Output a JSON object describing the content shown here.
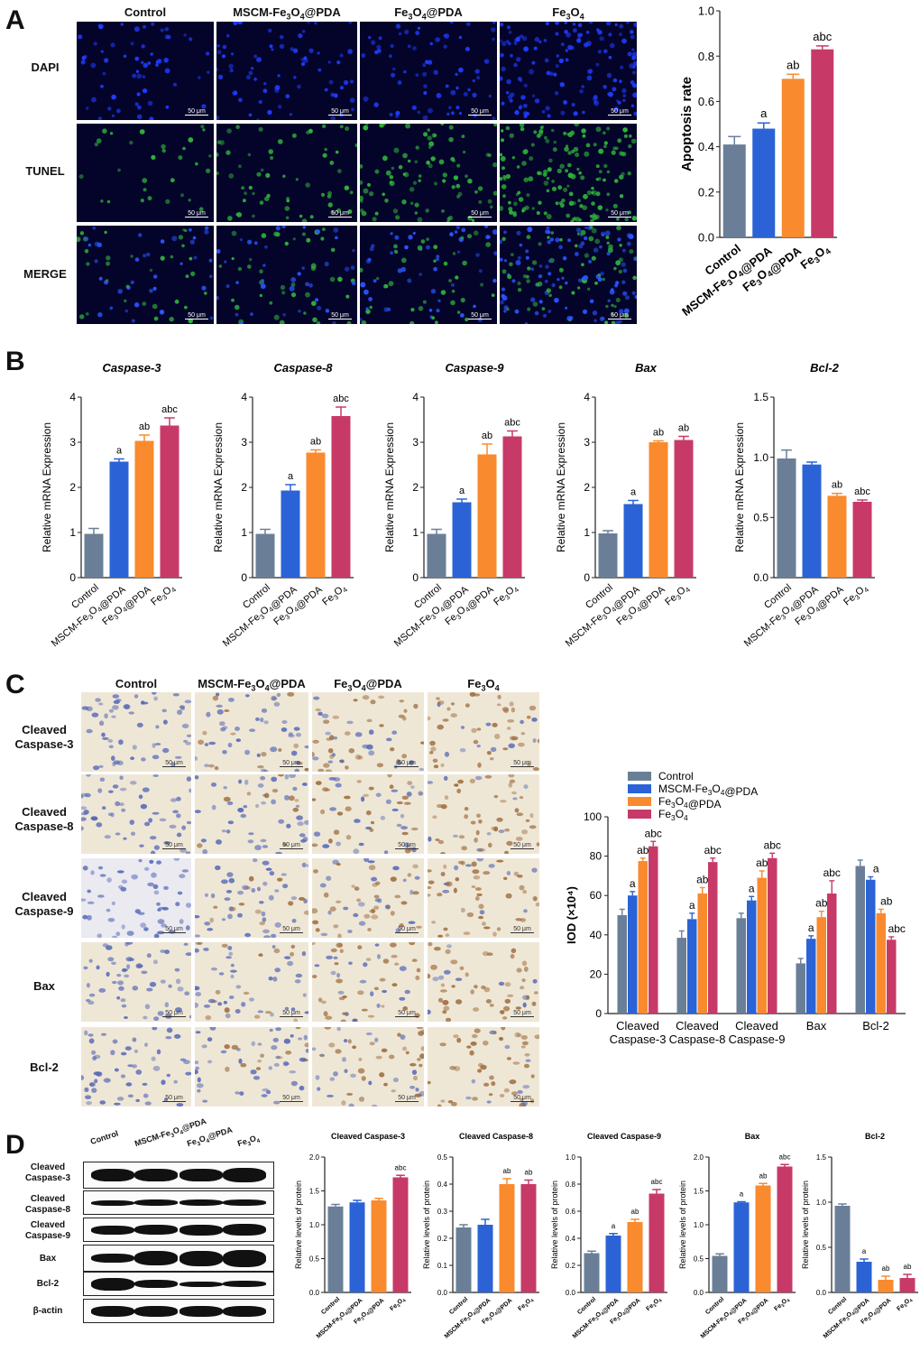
{
  "panels": {
    "a": "A",
    "b": "B",
    "c": "C",
    "d": "D"
  },
  "groups": [
    "Control",
    "MSCM-Fe3O4@PDA",
    "Fe3O4@PDA",
    "Fe3O4"
  ],
  "colors": {
    "control": "#6a7f97",
    "mscm": "#2b63d6",
    "fe3o4pda": "#f98a2e",
    "fe3o4": "#c73a67"
  },
  "panelA": {
    "columns": [
      "Control",
      "MSCM-Fe3O4@PDA",
      "Fe3O4@PDA",
      "Fe3O4"
    ],
    "rows": [
      "DAPI",
      "TUNEL",
      "MERGE"
    ],
    "scale_bar": "50 μm"
  },
  "panelC": {
    "columns": [
      "Control",
      "MSCM-Fe3O4@PDA",
      "Fe3O4@PDA",
      "Fe3O4"
    ],
    "rows": [
      "Cleaved Caspase-3",
      "Cleaved Caspase-8",
      "Cleaved Caspase-9",
      "Bax",
      "Bcl-2"
    ],
    "scale_bar": "50 μm"
  },
  "panelD": {
    "lanes": [
      "Control",
      "MSCM-Fe3O4@PDA",
      "Fe3O4@PDA",
      "Fe3O4"
    ],
    "rows": [
      "Cleaved Caspase-3",
      "Cleaved Caspase-8",
      "Cleaved Caspase-9",
      "Bax",
      "Bcl-2",
      "β-actin"
    ]
  },
  "chart_data": [
    {
      "id": "A",
      "type": "bar",
      "title": "",
      "ylabel": "Apoptosis rate",
      "ylim": [
        0,
        1.0
      ],
      "yticks": [
        0.0,
        0.2,
        0.4,
        0.6,
        0.8,
        1.0
      ],
      "categories": [
        "Control",
        "MSCM-Fe3O4@PDA",
        "Fe3O4@PDA",
        "Fe3O4"
      ],
      "values": [
        0.41,
        0.48,
        0.7,
        0.83
      ],
      "errors": [
        0.035,
        0.025,
        0.02,
        0.015
      ],
      "annotations": [
        "",
        "a",
        "ab",
        "abc"
      ]
    },
    {
      "id": "B1",
      "type": "bar",
      "title": "Caspase-3",
      "ylabel": "Relative mRNA Expression",
      "ylim": [
        0,
        4
      ],
      "yticks": [
        0,
        1,
        2,
        3,
        4
      ],
      "categories": [
        "Control",
        "MSCM-Fe3O4@PDA",
        "Fe3O4@PDA",
        "Fe3O4"
      ],
      "values": [
        0.97,
        2.57,
        3.03,
        3.37
      ],
      "errors": [
        0.12,
        0.06,
        0.13,
        0.17
      ],
      "annotations": [
        "",
        "a",
        "ab",
        "abc"
      ]
    },
    {
      "id": "B2",
      "type": "bar",
      "title": "Caspase-8",
      "ylabel": "Relative mRNA Expression",
      "ylim": [
        0,
        4
      ],
      "yticks": [
        0,
        1,
        2,
        3,
        4
      ],
      "categories": [
        "Control",
        "MSCM-Fe3O4@PDA",
        "Fe3O4@PDA",
        "Fe3O4"
      ],
      "values": [
        0.97,
        1.93,
        2.77,
        3.58
      ],
      "errors": [
        0.1,
        0.13,
        0.06,
        0.2
      ],
      "annotations": [
        "",
        "a",
        "ab",
        "abc"
      ]
    },
    {
      "id": "B3",
      "type": "bar",
      "title": "Caspase-9",
      "ylabel": "Relative mRNA Expression",
      "ylim": [
        0,
        4
      ],
      "yticks": [
        0,
        1,
        2,
        3,
        4
      ],
      "categories": [
        "Control",
        "MSCM-Fe3O4@PDA",
        "Fe3O4@PDA",
        "Fe3O4"
      ],
      "values": [
        0.97,
        1.67,
        2.73,
        3.13
      ],
      "errors": [
        0.1,
        0.07,
        0.23,
        0.12
      ],
      "annotations": [
        "",
        "a",
        "ab",
        "abc"
      ]
    },
    {
      "id": "B4",
      "type": "bar",
      "title": "Bax",
      "ylabel": "Relative mRNA Expression",
      "ylim": [
        0,
        4
      ],
      "yticks": [
        0,
        1,
        2,
        3,
        4
      ],
      "categories": [
        "Control",
        "MSCM-Fe3O4@PDA",
        "Fe3O4@PDA",
        "Fe3O4"
      ],
      "values": [
        0.98,
        1.63,
        3.0,
        3.05
      ],
      "errors": [
        0.06,
        0.08,
        0.03,
        0.08
      ],
      "annotations": [
        "",
        "a",
        "ab",
        "ab"
      ]
    },
    {
      "id": "B5",
      "type": "bar",
      "title": "Bcl-2",
      "ylabel": "Relative mRNA Expression",
      "ylim": [
        0,
        1.5
      ],
      "yticks": [
        0.0,
        0.5,
        1.0,
        1.5
      ],
      "categories": [
        "Control",
        "MSCM-Fe3O4@PDA",
        "Fe3O4@PDA",
        "Fe3O4"
      ],
      "values": [
        0.99,
        0.94,
        0.68,
        0.63
      ],
      "errors": [
        0.07,
        0.02,
        0.02,
        0.015
      ],
      "annotations": [
        "",
        "",
        "ab",
        "abc"
      ]
    },
    {
      "id": "C",
      "type": "bar",
      "title": "",
      "ylabel": "IOD (×10⁴)",
      "ylim": [
        0,
        100
      ],
      "yticks": [
        0,
        20,
        40,
        60,
        80,
        100
      ],
      "categories": [
        "Cleaved Caspase-3",
        "Cleaved Caspase-8",
        "Cleaved Caspase-9",
        "Bax",
        "Bcl-2"
      ],
      "legend": "top-left",
      "series": [
        {
          "name": "Control",
          "values": [
            50,
            38.5,
            48.5,
            25.5,
            75
          ],
          "errors": [
            3,
            3.5,
            2.5,
            2.5,
            3
          ],
          "annotations": [
            "",
            "",
            "",
            "",
            ""
          ]
        },
        {
          "name": "MSCM-Fe3O4@PDA",
          "values": [
            60,
            48,
            57.5,
            38,
            68
          ],
          "errors": [
            2,
            3,
            2,
            1.5,
            1.5
          ],
          "annotations": [
            "a",
            "a",
            "a",
            "a",
            "a"
          ]
        },
        {
          "name": "Fe3O4@PDA",
          "values": [
            77.5,
            61,
            69,
            49,
            51
          ],
          "errors": [
            1.5,
            3,
            3.5,
            3,
            2
          ],
          "annotations": [
            "ab",
            "ab",
            "ab",
            "ab",
            "ab"
          ]
        },
        {
          "name": "Fe3O4",
          "values": [
            85,
            77,
            79,
            61,
            37.5
          ],
          "errors": [
            2.5,
            2,
            2.5,
            6.5,
            1.5
          ],
          "annotations": [
            "abc",
            "abc",
            "abc",
            "abc",
            "abc"
          ]
        }
      ]
    },
    {
      "id": "D1",
      "type": "bar",
      "title": "Cleaved Caspase-3",
      "ylabel": "Relative levels of protein",
      "ylim": [
        0,
        2.0
      ],
      "yticks": [
        0.0,
        0.5,
        1.0,
        1.5,
        2.0
      ],
      "categories": [
        "Control",
        "MSCM-Fe3O4@PDA",
        "Fe3O4@PDA",
        "Fe3O4"
      ],
      "values": [
        1.27,
        1.33,
        1.36,
        1.7
      ],
      "errors": [
        0.03,
        0.03,
        0.03,
        0.03
      ],
      "annotations": [
        "",
        "",
        "",
        "abc"
      ]
    },
    {
      "id": "D2",
      "type": "bar",
      "title": "Cleaved Caspase-8",
      "ylabel": "Relative levels of protein",
      "ylim": [
        0,
        0.5
      ],
      "yticks": [
        0.0,
        0.1,
        0.2,
        0.3,
        0.4,
        0.5
      ],
      "categories": [
        "Control",
        "MSCM-Fe3O4@PDA",
        "Fe3O4@PDA",
        "Fe3O4"
      ],
      "values": [
        0.24,
        0.25,
        0.4,
        0.4
      ],
      "errors": [
        0.01,
        0.02,
        0.02,
        0.015
      ],
      "annotations": [
        "",
        "",
        "ab",
        "ab"
      ]
    },
    {
      "id": "D3",
      "type": "bar",
      "title": "Cleaved Caspase-9",
      "ylabel": "Relative levels of protein",
      "ylim": [
        0,
        1.0
      ],
      "yticks": [
        0.0,
        0.2,
        0.4,
        0.6,
        0.8,
        1.0
      ],
      "categories": [
        "Control",
        "MSCM-Fe3O4@PDA",
        "Fe3O4@PDA",
        "Fe3O4"
      ],
      "values": [
        0.29,
        0.42,
        0.52,
        0.73
      ],
      "errors": [
        0.015,
        0.015,
        0.02,
        0.03
      ],
      "annotations": [
        "",
        "a",
        "ab",
        "abc"
      ]
    },
    {
      "id": "D4",
      "type": "bar",
      "title": "Bax",
      "ylabel": "Relative levels of protein",
      "ylim": [
        0,
        2.0
      ],
      "yticks": [
        0.0,
        0.5,
        1.0,
        1.5,
        2.0
      ],
      "categories": [
        "Control",
        "MSCM-Fe3O4@PDA",
        "Fe3O4@PDA",
        "Fe3O4"
      ],
      "values": [
        0.54,
        1.33,
        1.58,
        1.86
      ],
      "errors": [
        0.03,
        0.01,
        0.03,
        0.03
      ],
      "annotations": [
        "",
        "a",
        "ab",
        "abc"
      ]
    },
    {
      "id": "D5",
      "type": "bar",
      "title": "Bcl-2",
      "ylabel": "Relative levels of protein",
      "ylim": [
        0,
        1.5
      ],
      "yticks": [
        0.0,
        0.5,
        1.0,
        1.5
      ],
      "categories": [
        "Control",
        "MSCM-Fe3O4@PDA",
        "Fe3O4@PDA",
        "Fe3O4"
      ],
      "values": [
        0.96,
        0.34,
        0.14,
        0.16
      ],
      "errors": [
        0.02,
        0.03,
        0.04,
        0.04
      ],
      "annotations": [
        "",
        "a",
        "ab",
        "ab"
      ]
    }
  ]
}
